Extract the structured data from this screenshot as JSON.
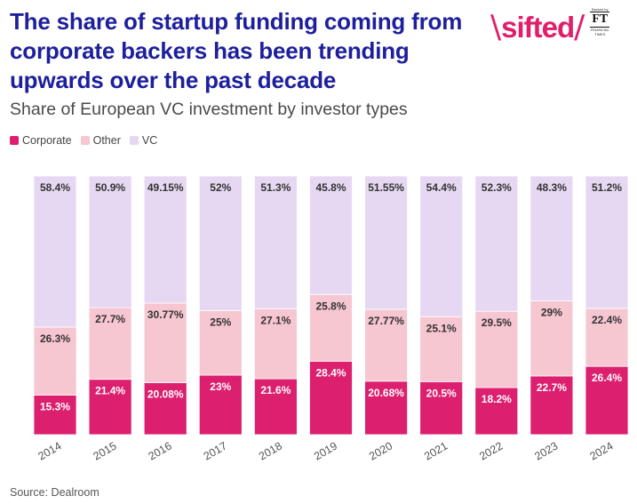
{
  "header": {
    "title": "The share of startup funding coming from corporate backers has been trending upwards over the past decade",
    "subtitle": "Share of European VC investment by investor types"
  },
  "logo": {
    "wordmark": "sifted",
    "ft_tagline": "Backed by",
    "ft_mark": "FT",
    "ft_name": "FINANCIAL TIMES"
  },
  "footer": {
    "source": "Source: Dealroom"
  },
  "chart_data": {
    "type": "bar",
    "stacked": true,
    "percent_stacked": true,
    "categories": [
      "2014",
      "2015",
      "2016",
      "2017",
      "2018",
      "2019",
      "2020",
      "2021",
      "2022",
      "2023",
      "2024"
    ],
    "series": [
      {
        "name": "Corporate",
        "color": "#dc1f6e",
        "values": [
          15.3,
          21.4,
          20.08,
          23,
          21.6,
          28.4,
          20.68,
          20.5,
          18.2,
          22.7,
          26.4
        ],
        "labels": [
          "15.3%",
          "21.4%",
          "20.08%",
          "23%",
          "21.6%",
          "28.4%",
          "20.68%",
          "20.5%",
          "18.2%",
          "22.7%",
          "26.4%"
        ]
      },
      {
        "name": "Other",
        "color": "#f6c6d1",
        "values": [
          26.3,
          27.7,
          30.77,
          25,
          27.1,
          25.8,
          27.77,
          25.1,
          29.5,
          29,
          22.4
        ],
        "labels": [
          "26.3%",
          "27.7%",
          "30.77%",
          "25%",
          "27.1%",
          "25.8%",
          "27.77%",
          "25.1%",
          "29.5%",
          "29%",
          "22.4%"
        ]
      },
      {
        "name": "VC",
        "color": "#e6d8f2",
        "values": [
          58.4,
          50.9,
          49.15,
          52,
          51.3,
          45.8,
          51.55,
          54.4,
          52.3,
          48.3,
          51.2
        ],
        "labels": [
          "58.4%",
          "50.9%",
          "49.15%",
          "52%",
          "51.3%",
          "45.8%",
          "51.55%",
          "54.4%",
          "52.3%",
          "48.3%",
          "51.2%"
        ]
      }
    ],
    "ylim": [
      0,
      100
    ],
    "legend_position": "top-left",
    "grid": false,
    "xlabel": "",
    "ylabel": ""
  }
}
